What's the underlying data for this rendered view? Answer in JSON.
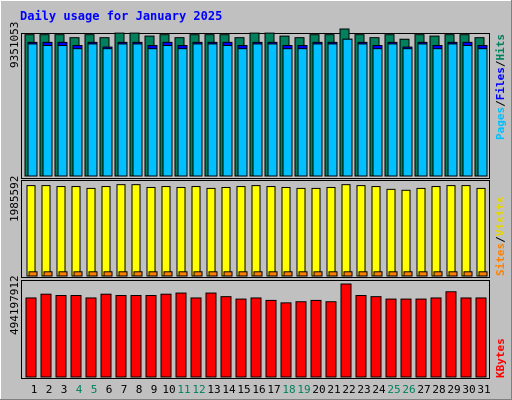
{
  "chart_data": {
    "type": "bar",
    "title": "Daily usage for January 2025",
    "days": [
      "1",
      "2",
      "3",
      "4",
      "5",
      "6",
      "7",
      "8",
      "9",
      "10",
      "11",
      "12",
      "13",
      "14",
      "15",
      "16",
      "17",
      "18",
      "19",
      "20",
      "21",
      "22",
      "23",
      "24",
      "25",
      "26",
      "27",
      "28",
      "29",
      "30",
      "31"
    ],
    "weekend_days": [
      "4",
      "5",
      "11",
      "12",
      "18",
      "19",
      "25",
      "26"
    ],
    "colors": {
      "background": "#c0c0c0",
      "title": "#0000ff",
      "hits": "#00805c",
      "files": "#0000ff",
      "pages": "#00c0ff",
      "visits": "#ffff00",
      "sites": "#ff8000",
      "kbytes": "#ff0000",
      "weekday_label": "#000000",
      "weekend_label": "#00805c"
    },
    "panels": {
      "hits": {
        "max_label": "9351053",
        "max": 9351053,
        "legend": {
          "pages": "Pages",
          "files": "Files",
          "hits": "Hits",
          "sep1": "/",
          "sep2": "/"
        },
        "series": {
          "hits": [
            8990000,
            8990000,
            8990000,
            8800000,
            8990000,
            8800000,
            9090000,
            9090000,
            8900000,
            8990000,
            8800000,
            8990000,
            8990000,
            8990000,
            8800000,
            9090000,
            9090000,
            8900000,
            8800000,
            8990000,
            8990000,
            9351053,
            8990000,
            8800000,
            8990000,
            8700000,
            8990000,
            8900000,
            8990000,
            8990000,
            8800000
          ],
          "files": [
            8500000,
            8500000,
            8500000,
            8300000,
            8500000,
            8200000,
            8500000,
            8500000,
            8300000,
            8500000,
            8300000,
            8500000,
            8500000,
            8500000,
            8300000,
            8500000,
            8500000,
            8300000,
            8300000,
            8500000,
            8500000,
            8700000,
            8500000,
            8300000,
            8500000,
            8200000,
            8500000,
            8300000,
            8500000,
            8500000,
            8300000
          ],
          "pages": [
            8400000,
            8300000,
            8300000,
            8100000,
            8400000,
            8100000,
            8400000,
            8400000,
            8100000,
            8300000,
            8100000,
            8400000,
            8400000,
            8300000,
            8100000,
            8400000,
            8400000,
            8100000,
            8100000,
            8400000,
            8400000,
            8700000,
            8400000,
            8100000,
            8400000,
            8100000,
            8400000,
            8100000,
            8400000,
            8300000,
            8100000
          ]
        }
      },
      "visits": {
        "max_label": "1985592",
        "max": 1985592,
        "legend": {
          "sites": "Sites",
          "visits": "Visits",
          "sep": "/"
        },
        "series": {
          "visits": [
            1930000,
            1930000,
            1910000,
            1910000,
            1870000,
            1910000,
            1950000,
            1950000,
            1890000,
            1910000,
            1890000,
            1910000,
            1870000,
            1890000,
            1910000,
            1930000,
            1910000,
            1890000,
            1870000,
            1870000,
            1890000,
            1950000,
            1930000,
            1910000,
            1850000,
            1830000,
            1870000,
            1910000,
            1930000,
            1930000,
            1870000
          ],
          "sites": [
            90000,
            90000,
            90000,
            90000,
            90000,
            90000,
            90000,
            90000,
            90000,
            90000,
            90000,
            90000,
            90000,
            90000,
            90000,
            90000,
            90000,
            90000,
            90000,
            90000,
            90000,
            90000,
            90000,
            90000,
            90000,
            90000,
            90000,
            90000,
            90000,
            90000,
            90000
          ]
        }
      },
      "kbytes": {
        "max_label": "494197912",
        "max": 494197912,
        "legend": {
          "kbytes": "KBytes"
        },
        "series": {
          "kbytes": [
            420000000,
            440000000,
            433000000,
            433000000,
            420000000,
            440000000,
            433000000,
            433000000,
            433000000,
            440000000,
            446000000,
            420000000,
            446000000,
            427000000,
            414000000,
            420000000,
            407000000,
            394000000,
            400000000,
            407000000,
            400000000,
            494197912,
            433000000,
            427000000,
            414000000,
            414000000,
            414000000,
            420000000,
            453000000,
            420000000,
            420000000
          ]
        }
      }
    }
  }
}
